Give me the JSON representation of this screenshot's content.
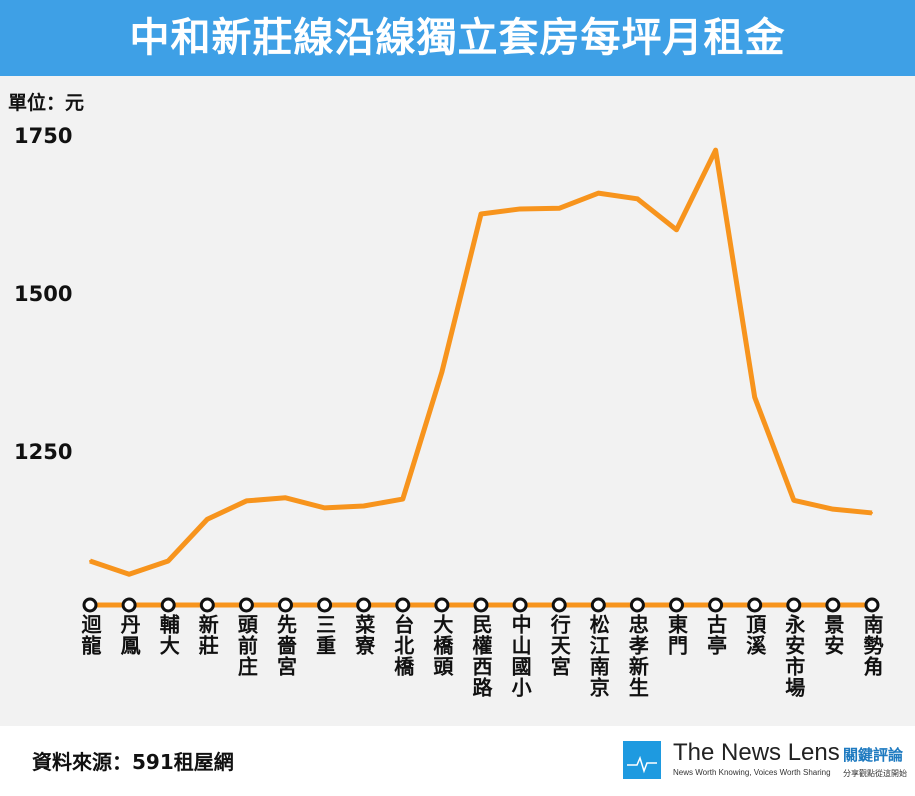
{
  "chart_data": {
    "type": "line",
    "title": "中和新莊線沿線獨立套房每坪月租金",
    "ylabel": "單位：元",
    "xlabel": "",
    "ylim": [
      1005,
      1770
    ],
    "yticks": [
      1250,
      1500,
      1750
    ],
    "grid": false,
    "categories": [
      "迴龍",
      "丹鳳",
      "輔大",
      "新莊",
      "頭前庄",
      "先嗇宮",
      "三重",
      "菜寮",
      "台北橋",
      "大橋頭",
      "民權西路",
      "中山國小",
      "行天宮",
      "松江南京",
      "忠孝新生",
      "東門",
      "古亭",
      "頂溪",
      "永安市場",
      "景安",
      "南勢角"
    ],
    "series": [
      {
        "name": "每坪月租金",
        "color": "#f7941d",
        "values": [
          1076,
          1055,
          1076,
          1142,
          1171,
          1176,
          1160,
          1163,
          1174,
          1375,
          1625,
          1633,
          1634,
          1658,
          1649,
          1600,
          1726,
          1335,
          1172,
          1158,
          1152
        ]
      }
    ]
  },
  "footer": {
    "source": "資料來源：591租屋網",
    "logo_name": "The News Lens",
    "logo_tagline": "News Worth Knowing, Voices Worth Sharing",
    "logo_cn": "關鍵評論",
    "logo_cn_tagline": "分享觀點從這開始"
  }
}
